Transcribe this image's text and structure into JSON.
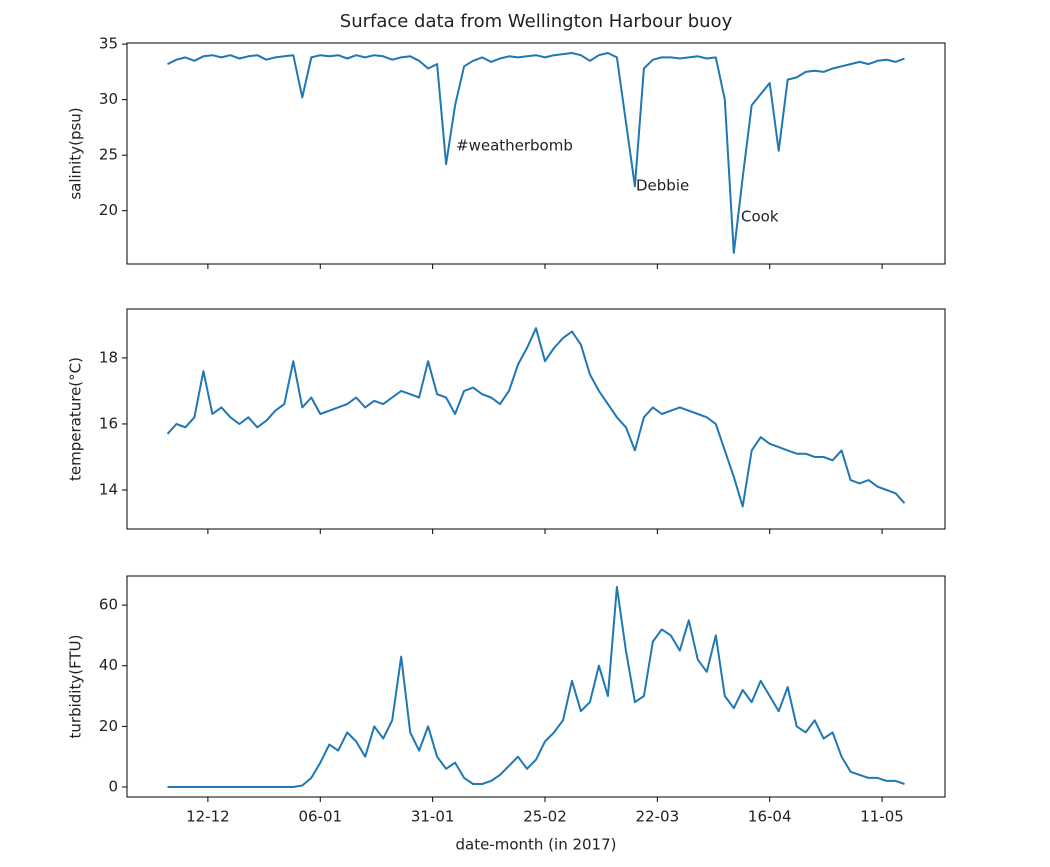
{
  "chart_data": {
    "type": "line",
    "title": "Surface data from Wellington Harbour buoy",
    "xlabel": "date-month (in 2017)",
    "x": [
      "03-12",
      "05-12",
      "07-12",
      "09-12",
      "11-12",
      "13-12",
      "15-12",
      "17-12",
      "19-12",
      "21-12",
      "23-12",
      "25-12",
      "27-12",
      "29-12",
      "31-12",
      "02-01",
      "04-01",
      "06-01",
      "08-01",
      "10-01",
      "12-01",
      "14-01",
      "16-01",
      "18-01",
      "20-01",
      "22-01",
      "24-01",
      "26-01",
      "28-01",
      "30-01",
      "01-02",
      "03-02",
      "05-02",
      "07-02",
      "09-02",
      "11-02",
      "13-02",
      "15-02",
      "17-02",
      "19-02",
      "21-02",
      "23-02",
      "25-02",
      "27-02",
      "01-03",
      "03-03",
      "05-03",
      "07-03",
      "09-03",
      "11-03",
      "13-03",
      "15-03",
      "17-03",
      "19-03",
      "21-03",
      "23-03",
      "25-03",
      "27-03",
      "29-03",
      "31-03",
      "02-04",
      "04-04",
      "06-04",
      "08-04",
      "10-04",
      "12-04",
      "14-04",
      "16-04",
      "18-04",
      "20-04",
      "22-04",
      "24-04",
      "26-04",
      "28-04",
      "30-04",
      "02-05",
      "04-05",
      "06-05",
      "08-05",
      "10-05",
      "12-05",
      "14-05",
      "16-05"
    ],
    "xlim": [
      "24-11",
      "25-05"
    ],
    "xticks": [
      "12-12",
      "06-01",
      "31-01",
      "25-02",
      "22-03",
      "16-04",
      "11-05"
    ],
    "subplots": [
      {
        "ylabel": "salinity(psu)",
        "ylim": [
          15.2,
          35.1
        ],
        "yticks": [
          20,
          25,
          30,
          35
        ],
        "annotations": [
          "#weatherbomb",
          "Debbie",
          "Cook"
        ],
        "series": [
          {
            "color": "#1f77b4",
            "values": [
              33.2,
              33.6,
              33.8,
              33.5,
              33.9,
              34.0,
              33.8,
              34.0,
              33.7,
              33.9,
              34.0,
              33.6,
              33.8,
              33.9,
              34.0,
              30.2,
              33.8,
              34.0,
              33.9,
              34.0,
              33.7,
              34.0,
              33.8,
              34.0,
              33.9,
              33.6,
              33.8,
              33.9,
              33.5,
              32.8,
              33.2,
              24.2,
              29.5,
              33.0,
              33.5,
              33.8,
              33.4,
              33.7,
              33.9,
              33.8,
              33.9,
              34.0,
              33.8,
              34.0,
              34.1,
              34.2,
              34.0,
              33.5,
              34.0,
              34.2,
              33.8,
              28.0,
              22.2,
              32.8,
              33.6,
              33.8,
              33.8,
              33.7,
              33.8,
              33.9,
              33.7,
              33.8,
              30.0,
              16.2,
              23,
              29.5,
              30.5,
              31.5,
              25.4,
              31.8,
              32.0,
              32.5,
              32.6,
              32.5,
              32.8,
              33.0,
              33.2,
              33.4,
              33.2,
              33.5,
              33.6,
              33.4,
              33.7
            ]
          }
        ]
      },
      {
        "ylabel": "temperature(°C)",
        "ylim": [
          12.82,
          19.48
        ],
        "yticks": [
          14,
          16,
          18
        ],
        "series": [
          {
            "color": "#1f77b4",
            "values": [
              15.7,
              16.0,
              15.9,
              16.2,
              17.6,
              16.3,
              16.5,
              16.2,
              16.0,
              16.2,
              15.9,
              16.1,
              16.4,
              16.6,
              17.9,
              16.5,
              16.8,
              16.3,
              16.4,
              16.5,
              16.6,
              16.8,
              16.5,
              16.7,
              16.6,
              16.8,
              17.0,
              16.9,
              16.8,
              17.9,
              16.9,
              16.8,
              16.3,
              17.0,
              17.1,
              16.9,
              16.8,
              16.6,
              17.0,
              17.8,
              18.3,
              18.9,
              17.9,
              18.3,
              18.6,
              18.8,
              18.4,
              17.5,
              17.0,
              16.6,
              16.2,
              15.9,
              15.2,
              16.2,
              16.5,
              16.3,
              16.4,
              16.5,
              16.4,
              16.3,
              16.2,
              16.0,
              15.2,
              14.4,
              13.5,
              15.2,
              15.6,
              15.4,
              15.3,
              15.2,
              15.1,
              15.1,
              15.0,
              15.0,
              14.9,
              15.2,
              14.3,
              14.2,
              14.3,
              14.1,
              14.0,
              13.9,
              13.6
            ]
          }
        ]
      },
      {
        "ylabel": "turbidity(FTU)",
        "ylim": [
          -3.3,
          69.6
        ],
        "yticks": [
          0,
          20,
          40,
          60
        ],
        "series": [
          {
            "color": "#1f77b4",
            "values": [
              0,
              0,
              0,
              0,
              0,
              0,
              0,
              0,
              0,
              0,
              0,
              0,
              0,
              0,
              0,
              0.5,
              3,
              8,
              14,
              12,
              18,
              15,
              10,
              20,
              16,
              22,
              43,
              18,
              12,
              20,
              10,
              6,
              8,
              3,
              1,
              1,
              2,
              4,
              7,
              10,
              6,
              9,
              15,
              18,
              22,
              35,
              25,
              28,
              40,
              30,
              66,
              45,
              28,
              30,
              48,
              52,
              50,
              45,
              55,
              42,
              38,
              50,
              30,
              26,
              32,
              28,
              35,
              30,
              25,
              33,
              20,
              18,
              22,
              16,
              18,
              10,
              5,
              4,
              3,
              3,
              2,
              2,
              1
            ]
          }
        ]
      }
    ]
  }
}
